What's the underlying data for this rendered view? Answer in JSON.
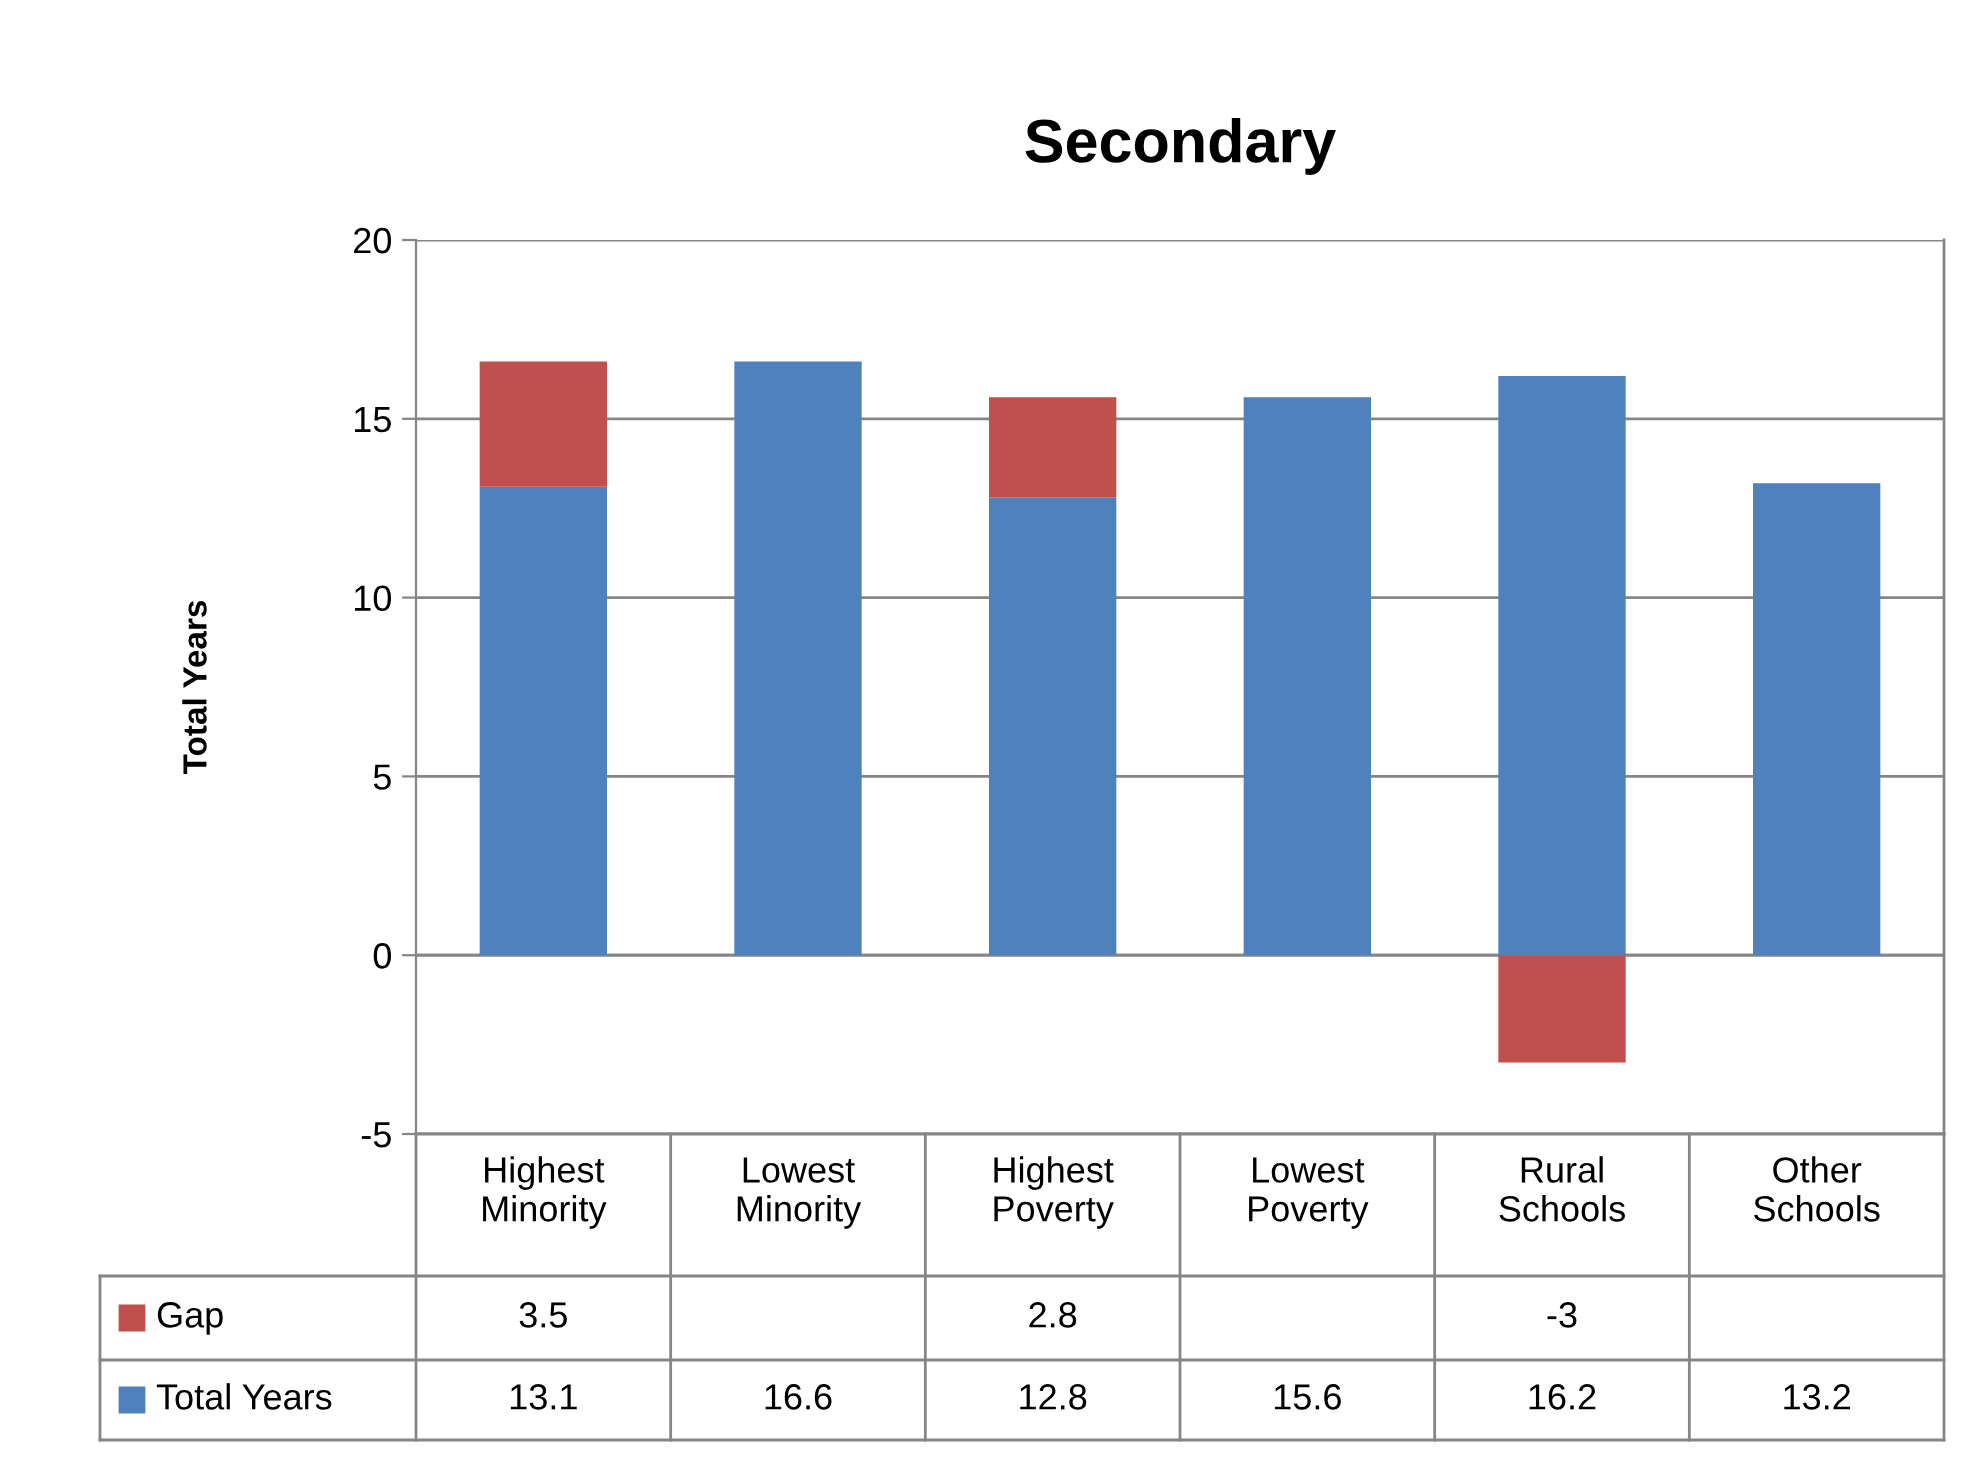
{
  "chart_data": {
    "type": "bar",
    "title": "Secondary",
    "ylabel": "Total Years",
    "categories": [
      "Highest\nMinority",
      "Lowest\nMinority",
      "Highest\nPoverty",
      "Lowest\nPoverty",
      "Rural\nSchools",
      "Other\nSchools"
    ],
    "series": [
      {
        "name": "Total Years",
        "color": "#4f81bd",
        "values": [
          13.1,
          16.6,
          12.8,
          15.6,
          16.2,
          13.2
        ]
      },
      {
        "name": "Gap",
        "color": "#c0504d",
        "values": [
          3.5,
          null,
          2.8,
          null,
          -3,
          null
        ]
      }
    ],
    "stacked": true,
    "ylim": [
      -5,
      20
    ],
    "yticks": [
      -5,
      0,
      5,
      10,
      15,
      20
    ],
    "grid": "y",
    "data_labels": true,
    "legend": "bottom"
  }
}
